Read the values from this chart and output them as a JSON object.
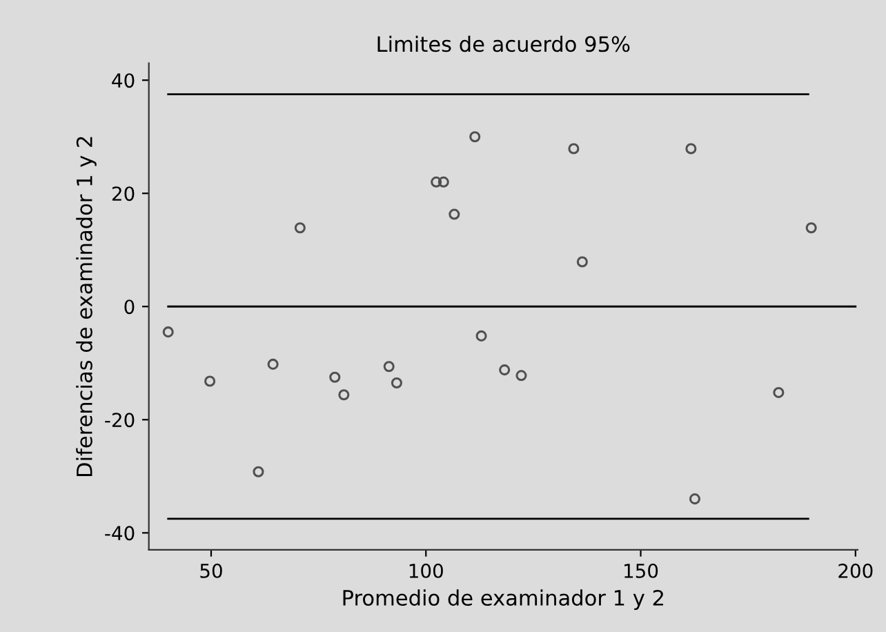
{
  "chart_data": {
    "type": "scatter",
    "title": "Limites de acuerdo 95%",
    "xlabel": "Promedio de examinador 1 y 2",
    "ylabel": "Diferencias de examinador 1 y 2",
    "series": [
      {
        "color": "#505050",
        "marker": "circle",
        "x": [
          40,
          49.7,
          61.0,
          64.4,
          70.7,
          78.8,
          80.9,
          91.4,
          93.2,
          102.4,
          104.1,
          106.6,
          111.4,
          112.9,
          118.3,
          122.2,
          134.4,
          136.4,
          161.7,
          162.6,
          182.1,
          189.7
        ],
        "values": [
          -4.5,
          -13.2,
          -29.2,
          -10.2,
          13.9,
          -12.5,
          -15.6,
          -10.6,
          -13.5,
          22.0,
          22.0,
          16.3,
          30.0,
          -5.2,
          -11.2,
          -12.2,
          27.9,
          7.9,
          27.9,
          -34.0,
          -15.2,
          13.9
        ]
      },
      {
        "type": "line",
        "color": "#000000",
        "marker": "none",
        "x": [
          40,
          189
        ],
        "values": [
          37.5,
          37.5
        ]
      },
      {
        "type": "line",
        "color": "#000000",
        "marker": "none",
        "x": [
          40,
          200
        ],
        "values": [
          0,
          0
        ]
      },
      {
        "type": "line",
        "color": "#000000",
        "marker": "none",
        "x": [
          40,
          189
        ],
        "values": [
          -37.5,
          -37.5
        ]
      }
    ],
    "xlim": [
      35.5,
      200.5
    ],
    "ylim": [
      -43,
      43
    ],
    "xticks": [
      50,
      100,
      150,
      200
    ],
    "yticks": [
      -40,
      -20,
      0,
      20,
      40
    ],
    "grid": false,
    "legend": false
  }
}
